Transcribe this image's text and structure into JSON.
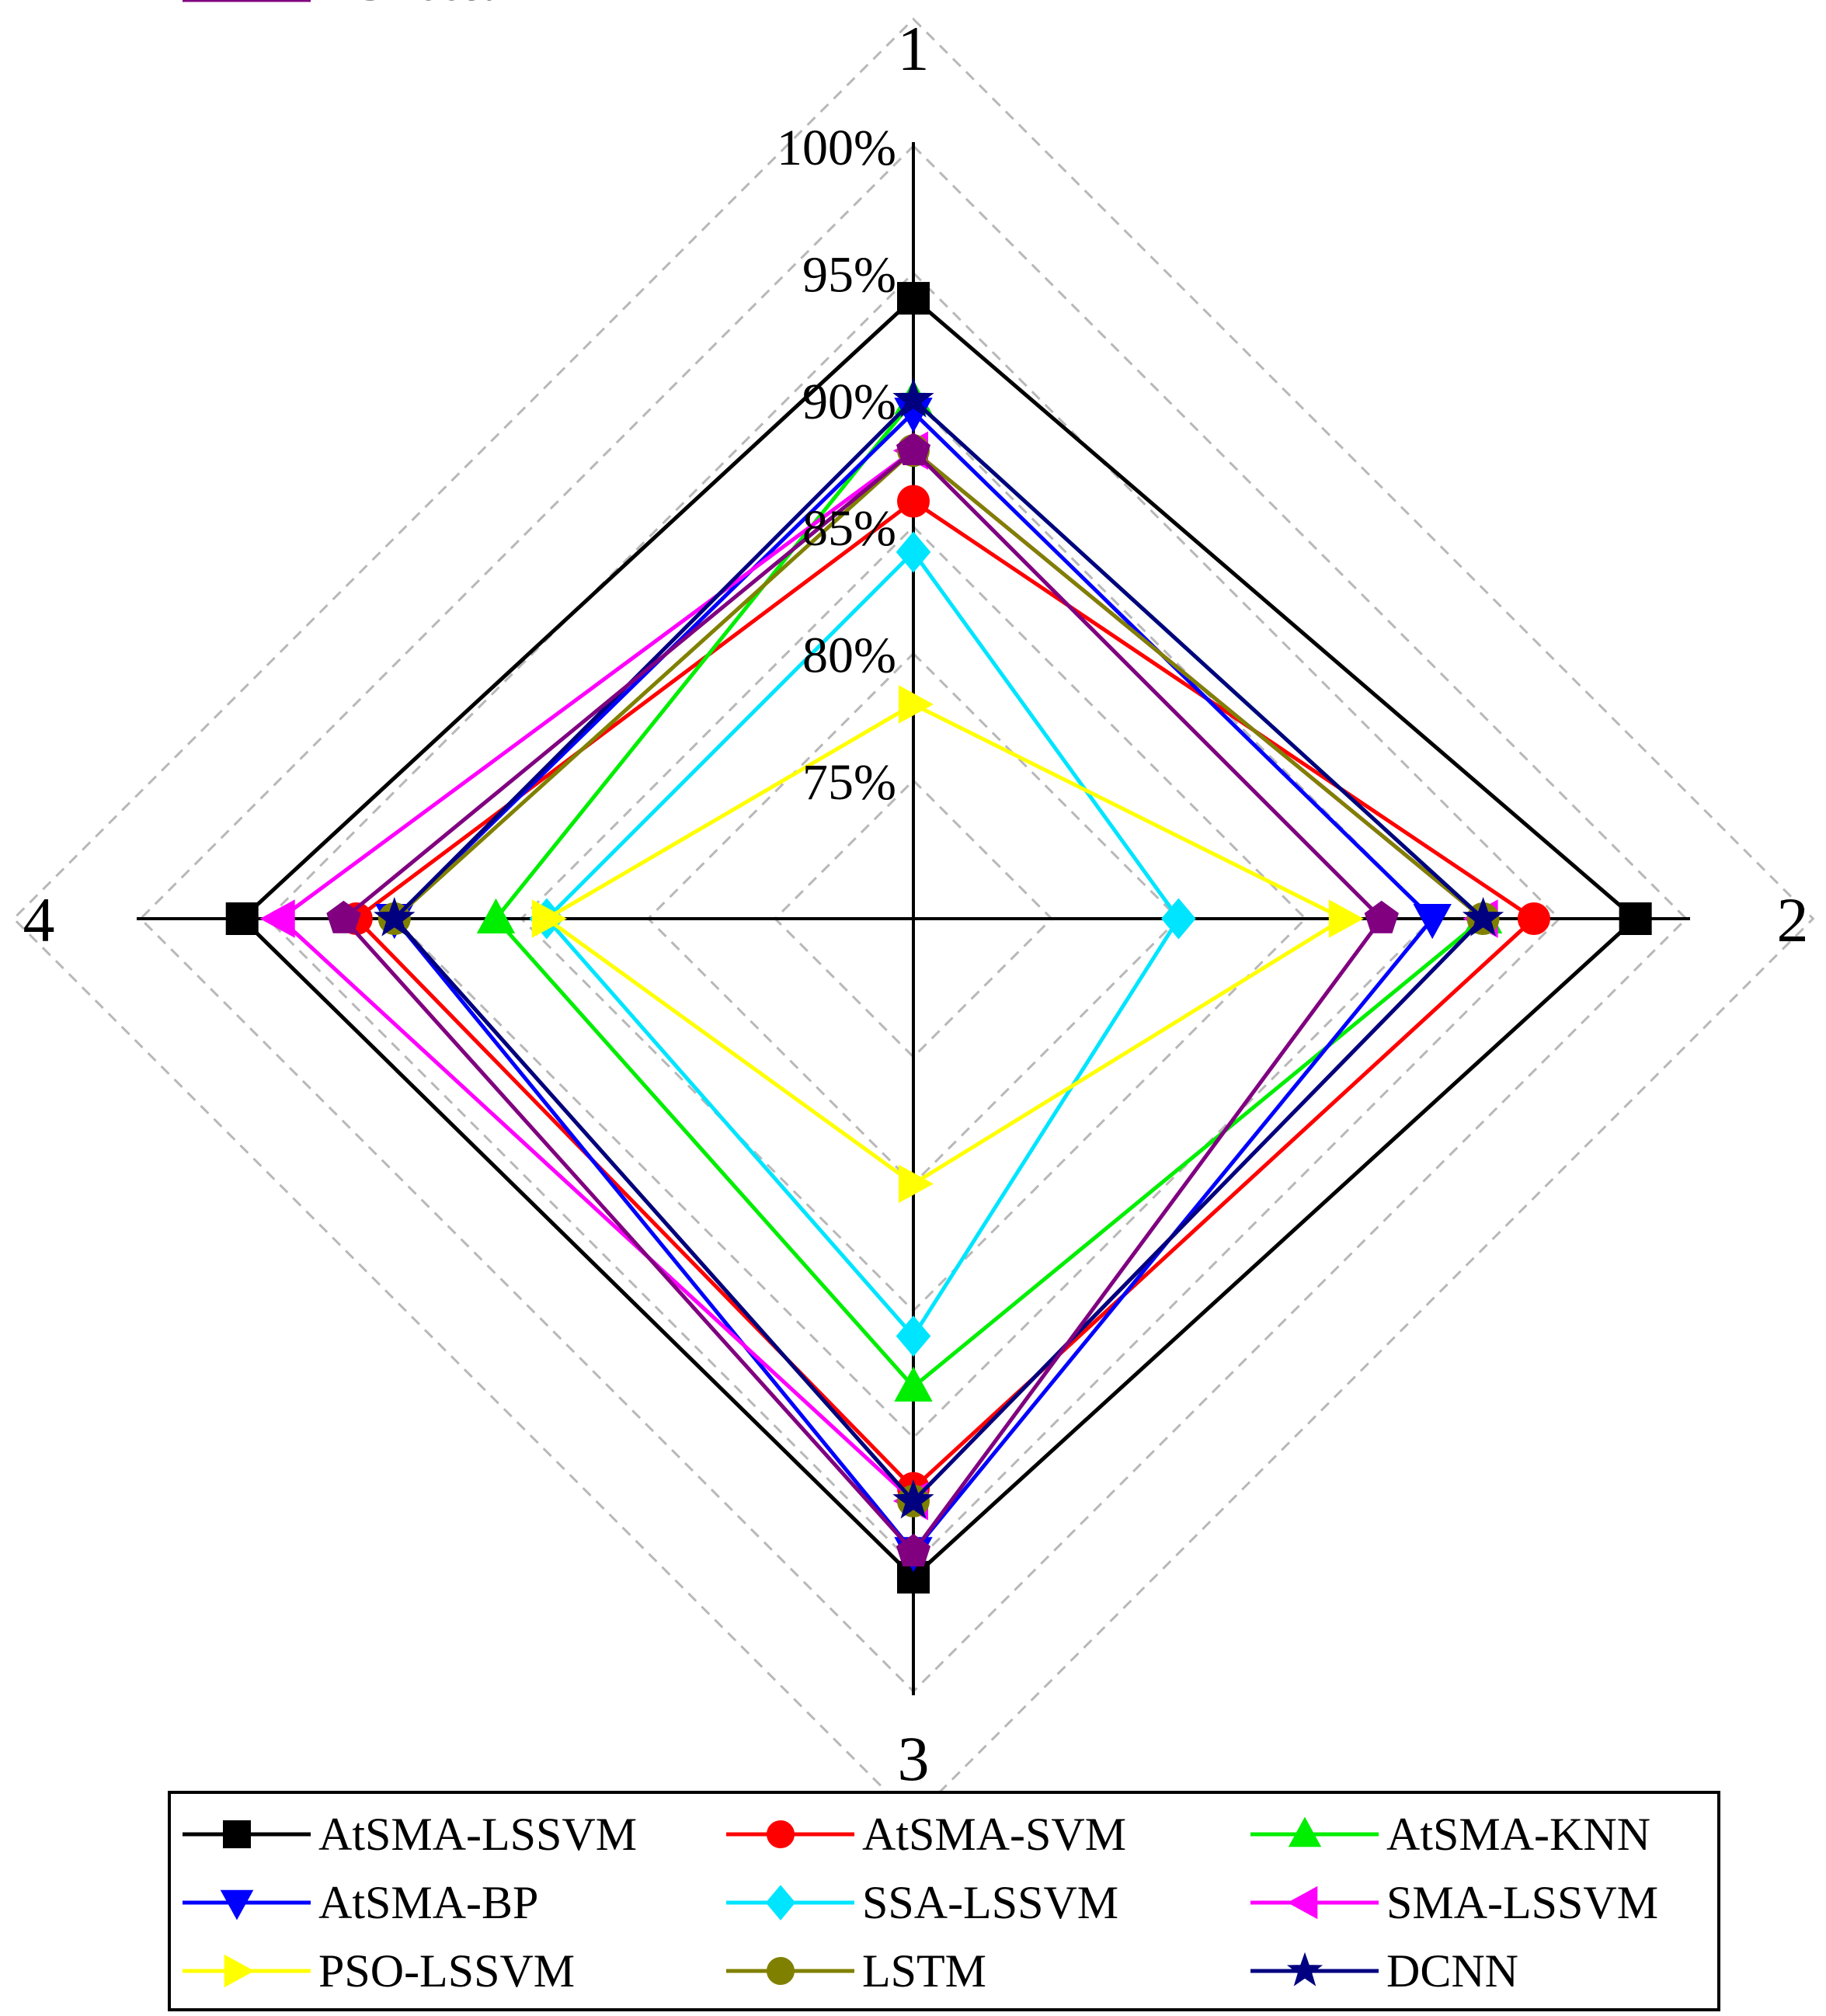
{
  "chart_data": {
    "type": "radar",
    "axes": [
      "1",
      "2",
      "3",
      "4"
    ],
    "r_ticks": [
      "75%",
      "80%",
      "85%",
      "90%",
      "95%",
      "100%"
    ],
    "r_range": [
      75,
      100
    ],
    "grid": true,
    "legend_position": "bottom",
    "series": [
      {
        "name": "AtSMA-LSSVM",
        "values": [
          94.0,
          98.0,
          95.5,
          96.0
        ],
        "color": "#000000",
        "marker": "square"
      },
      {
        "name": "AtSMA-SVM",
        "values": [
          86.0,
          94.0,
          92.0,
          91.5
        ],
        "color": "#ff0000",
        "marker": "circle"
      },
      {
        "name": "AtSMA-KNN",
        "values": [
          90.0,
          92.0,
          88.0,
          86.0
        ],
        "color": "#00ee00",
        "marker": "triangle-up"
      },
      {
        "name": "AtSMA-BP",
        "values": [
          89.5,
          90.0,
          94.5,
          90.0
        ],
        "color": "#0000ff",
        "marker": "triangle-down"
      },
      {
        "name": "SSA-LSSVM",
        "values": [
          84.0,
          80.0,
          86.0,
          84.0
        ],
        "color": "#00e5ff",
        "marker": "diamond"
      },
      {
        "name": "SMA-LSSVM",
        "values": [
          88.0,
          92.0,
          92.5,
          94.5
        ],
        "color": "#ff00ff",
        "marker": "triangle-left"
      },
      {
        "name": "PSO-LSSVM",
        "values": [
          78.0,
          86.5,
          80.0,
          84.0
        ],
        "color": "#ffff00",
        "marker": "triangle-right"
      },
      {
        "name": "LSTM",
        "values": [
          88.0,
          92.0,
          92.5,
          90.0
        ],
        "color": "#808000",
        "marker": "circle"
      },
      {
        "name": "DCNN",
        "values": [
          90.0,
          92.0,
          92.5,
          90.0
        ],
        "color": "#000080",
        "marker": "star"
      },
      {
        "name": "XGBoost",
        "values": [
          88.0,
          88.0,
          94.5,
          92.0
        ],
        "color": "#800080",
        "marker": "pentagon"
      }
    ]
  }
}
